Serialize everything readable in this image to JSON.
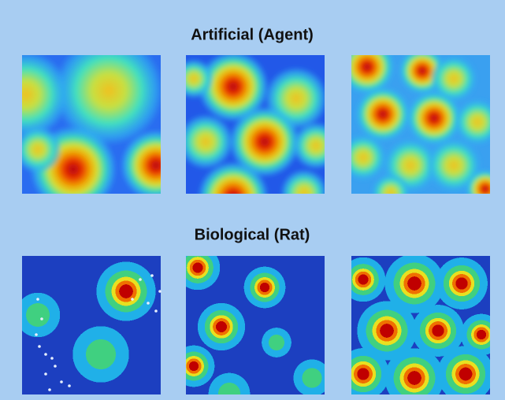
{
  "sections": [
    {
      "title": "Artificial (Agent)"
    },
    {
      "title": "Biological (Rat)"
    }
  ]
}
